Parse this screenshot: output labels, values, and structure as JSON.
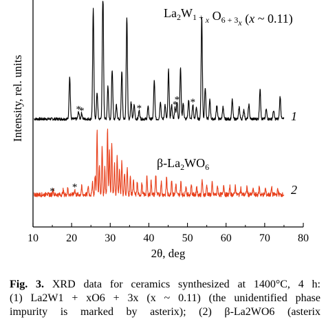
{
  "chart_data": {
    "type": "line",
    "xlabel": "2θ, deg",
    "ylabel": "Intensity, rel. units",
    "xlim": [
      10,
      80
    ],
    "x_ticks": [
      "10",
      "20",
      "30",
      "40",
      "50",
      "60",
      "70",
      "80"
    ],
    "y_ticks": [],
    "grid": false,
    "series": [
      {
        "label": "1",
        "annotation_formula": "La2W1 + x O6 + 3x (x ~ 0.11)",
        "color": "#000000",
        "baseline": 0.0,
        "noise": 0.012,
        "x_range": [
          10.3,
          75
        ],
        "peaks": [
          {
            "x": 19.5,
            "y": 0.36
          },
          {
            "x": 21.8,
            "y": 0.06
          },
          {
            "x": 22.6,
            "y": 0.05
          },
          {
            "x": 25.6,
            "y": 0.92
          },
          {
            "x": 26.6,
            "y": 0.22
          },
          {
            "x": 28.1,
            "y": 1.1
          },
          {
            "x": 29.4,
            "y": 0.28
          },
          {
            "x": 30.5,
            "y": 0.42
          },
          {
            "x": 31.6,
            "y": 0.12
          },
          {
            "x": 33.0,
            "y": 0.4
          },
          {
            "x": 34.3,
            "y": 0.86
          },
          {
            "x": 35.4,
            "y": 0.14
          },
          {
            "x": 36.2,
            "y": 0.12
          },
          {
            "x": 37.5,
            "y": 0.07
          },
          {
            "x": 39.8,
            "y": 0.1
          },
          {
            "x": 41.4,
            "y": 0.32
          },
          {
            "x": 43.0,
            "y": 0.15
          },
          {
            "x": 44.2,
            "y": 0.12
          },
          {
            "x": 45.1,
            "y": 0.41
          },
          {
            "x": 45.9,
            "y": 0.12
          },
          {
            "x": 46.8,
            "y": 0.1
          },
          {
            "x": 47.3,
            "y": 0.14
          },
          {
            "x": 48.2,
            "y": 0.43
          },
          {
            "x": 48.9,
            "y": 0.13
          },
          {
            "x": 50.3,
            "y": 0.16
          },
          {
            "x": 51.4,
            "y": 0.12
          },
          {
            "x": 52.3,
            "y": 0.1
          },
          {
            "x": 53.7,
            "y": 0.86
          },
          {
            "x": 54.6,
            "y": 0.27
          },
          {
            "x": 55.8,
            "y": 0.16
          },
          {
            "x": 57.6,
            "y": 0.12
          },
          {
            "x": 59.2,
            "y": 0.1
          },
          {
            "x": 61.6,
            "y": 0.16
          },
          {
            "x": 63.4,
            "y": 0.1
          },
          {
            "x": 64.6,
            "y": 0.08
          },
          {
            "x": 65.9,
            "y": 0.12
          },
          {
            "x": 68.8,
            "y": 0.25
          },
          {
            "x": 70.4,
            "y": 0.08
          },
          {
            "x": 72.3,
            "y": 0.07
          },
          {
            "x": 74.0,
            "y": 0.19
          }
        ],
        "asterisks": [
          21.8,
          22.6,
          37.5,
          46.8,
          47.3,
          51.4
        ]
      },
      {
        "label": "2",
        "annotation_formula": "β-La2WO6",
        "color": "#e8401c",
        "baseline": 0.0,
        "noise": 0.025,
        "x_range": [
          10.3,
          75
        ],
        "peaks": [
          {
            "x": 13.5,
            "y": 0.03
          },
          {
            "x": 15.2,
            "y": 0.06
          },
          {
            "x": 17.8,
            "y": 0.05
          },
          {
            "x": 19.0,
            "y": 0.07
          },
          {
            "x": 20.8,
            "y": 0.06
          },
          {
            "x": 22.6,
            "y": 0.09
          },
          {
            "x": 24.3,
            "y": 0.1
          },
          {
            "x": 25.4,
            "y": 0.15
          },
          {
            "x": 26.1,
            "y": 0.22
          },
          {
            "x": 26.6,
            "y": 0.73
          },
          {
            "x": 27.2,
            "y": 0.35
          },
          {
            "x": 27.9,
            "y": 0.55
          },
          {
            "x": 28.6,
            "y": 0.3
          },
          {
            "x": 29.3,
            "y": 0.74
          },
          {
            "x": 29.8,
            "y": 0.5
          },
          {
            "x": 30.4,
            "y": 0.58
          },
          {
            "x": 31.1,
            "y": 0.35
          },
          {
            "x": 31.8,
            "y": 0.44
          },
          {
            "x": 32.4,
            "y": 0.28
          },
          {
            "x": 33.0,
            "y": 0.38
          },
          {
            "x": 33.7,
            "y": 0.25
          },
          {
            "x": 34.4,
            "y": 0.3
          },
          {
            "x": 35.2,
            "y": 0.2
          },
          {
            "x": 36.0,
            "y": 0.17
          },
          {
            "x": 37.0,
            "y": 0.14
          },
          {
            "x": 38.2,
            "y": 0.13
          },
          {
            "x": 39.5,
            "y": 0.2
          },
          {
            "x": 40.6,
            "y": 0.16
          },
          {
            "x": 41.8,
            "y": 0.23
          },
          {
            "x": 43.2,
            "y": 0.15
          },
          {
            "x": 44.6,
            "y": 0.2
          },
          {
            "x": 45.9,
            "y": 0.18
          },
          {
            "x": 47.0,
            "y": 0.12
          },
          {
            "x": 48.3,
            "y": 0.14
          },
          {
            "x": 49.6,
            "y": 0.11
          },
          {
            "x": 51.0,
            "y": 0.12
          },
          {
            "x": 52.4,
            "y": 0.1
          },
          {
            "x": 53.8,
            "y": 0.17
          },
          {
            "x": 55.0,
            "y": 0.11
          },
          {
            "x": 56.4,
            "y": 0.13
          },
          {
            "x": 57.8,
            "y": 0.1
          },
          {
            "x": 59.4,
            "y": 0.12
          },
          {
            "x": 61.0,
            "y": 0.09
          },
          {
            "x": 62.4,
            "y": 0.1
          },
          {
            "x": 63.8,
            "y": 0.08
          },
          {
            "x": 65.4,
            "y": 0.09
          },
          {
            "x": 67.0,
            "y": 0.07
          },
          {
            "x": 68.6,
            "y": 0.09
          },
          {
            "x": 70.2,
            "y": 0.07
          },
          {
            "x": 71.8,
            "y": 0.08
          },
          {
            "x": 73.4,
            "y": 0.06
          }
        ],
        "asterisks": [
          15.0,
          20.8
        ]
      }
    ]
  },
  "annotations": {
    "series1_formula": "La2W1 + x O6 + 3x (x ~ 0.11)",
    "series2_formula": "β-La2WO6",
    "asterisk_symbol": "*"
  },
  "caption": {
    "fig_label": "Fig. 3.",
    "line1_text": " XRD data for ceramics synthesized at 1400°C, 4 h:",
    "line2_text": "(1) La2W1 + xO6 + 3x (x ~ 0.11) (the unidentified phase",
    "line3_text": "impurity is marked by asterix); (2) β-La2WO6 (asterix"
  }
}
